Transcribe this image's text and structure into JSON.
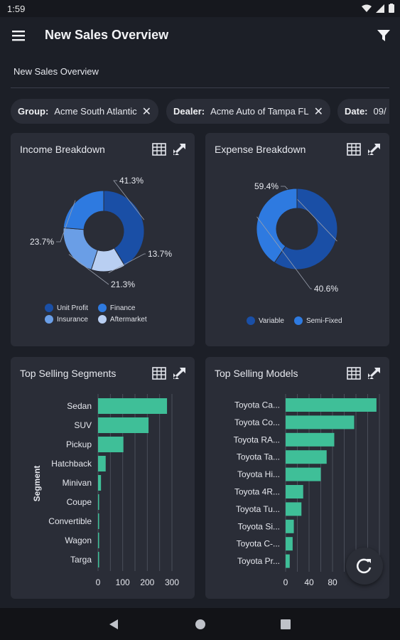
{
  "status": {
    "time": "1:59"
  },
  "app": {
    "title": "New Sales Overview",
    "subtitle": "New Sales Overview"
  },
  "filters": [
    {
      "key": "Group:",
      "value": "Acme South Atlantic"
    },
    {
      "key": "Dealer:",
      "value": "Acme Auto of Tampa FL"
    },
    {
      "key": "Date:",
      "value": "09/"
    }
  ],
  "income": {
    "title": "Income Breakdown",
    "labels": [
      "41.3%",
      "13.7%",
      "21.3%",
      "23.7%"
    ],
    "legend": [
      "Unit Profit",
      "Finance",
      "Insurance",
      "Aftermarket"
    ]
  },
  "expense": {
    "title": "Expense Breakdown",
    "labels": [
      "59.4%",
      "40.6%"
    ],
    "legend": [
      "Variable",
      "Semi-Fixed"
    ]
  },
  "segments": {
    "title": "Top Selling Segments",
    "ylabel": "Segment"
  },
  "models": {
    "title": "Top Selling Models"
  },
  "colors": {
    "bar": "#3fbf98",
    "dark_blue": "#1a4fa6",
    "mid_blue": "#2e7ae0",
    "light_blue": "#6a9ee6",
    "pale_blue": "#b9cff2"
  },
  "chart_data": [
    {
      "type": "pie",
      "title": "Income Breakdown",
      "categories": [
        "Unit Profit",
        "Finance",
        "Insurance",
        "Aftermarket"
      ],
      "values": [
        41.3,
        13.7,
        21.3,
        23.7
      ],
      "colors": [
        "#1a4fa6",
        "#b9cff2",
        "#6a9ee6",
        "#2e7ae0"
      ]
    },
    {
      "type": "pie",
      "title": "Expense Breakdown",
      "categories": [
        "Variable",
        "Semi-Fixed"
      ],
      "values": [
        59.4,
        40.6
      ],
      "colors": [
        "#1a4fa6",
        "#2e7ae0"
      ]
    },
    {
      "type": "bar",
      "orientation": "horizontal",
      "title": "Top Selling Segments",
      "ylabel": "Segment",
      "categories": [
        "Sedan",
        "SUV",
        "Pickup",
        "Hatchback",
        "Minivan",
        "Coupe",
        "Convertible",
        "Wagon",
        "Targa"
      ],
      "values": [
        280,
        205,
        103,
        31,
        12,
        3,
        2,
        2,
        2
      ],
      "xticks": [
        "0",
        "100",
        "200",
        "300"
      ],
      "xlim": [
        0,
        300
      ]
    },
    {
      "type": "bar",
      "orientation": "horizontal",
      "title": "Top Selling Models",
      "categories": [
        "Toyota Ca...",
        "Toyota Co...",
        "Toyota RA...",
        "Toyota Ta...",
        "Toyota Hi...",
        "Toyota 4R...",
        "Toyota Tu...",
        "Toyota Si...",
        "Toyota C-...",
        "Toyota Pr..."
      ],
      "values": [
        155,
        117,
        83,
        70,
        60,
        30,
        27,
        14,
        12,
        7
      ],
      "xticks": [
        "0",
        "40",
        "80"
      ],
      "xlim": [
        0,
        160
      ]
    }
  ]
}
